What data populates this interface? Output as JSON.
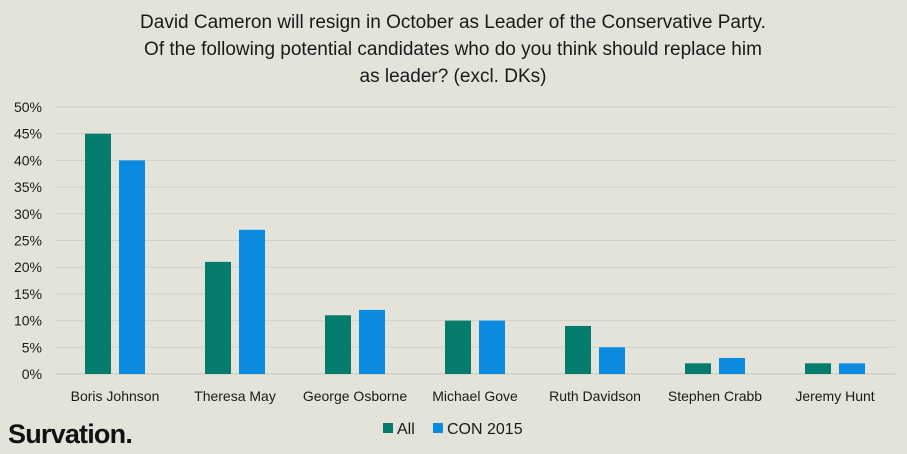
{
  "chart_data": {
    "type": "bar",
    "title_lines": [
      "David Cameron will resign in October as Leader of the Conservative Party.",
      "Of the following potential candidates who do you think should replace him",
      "as leader? (excl. DKs)"
    ],
    "categories": [
      "Boris Johnson",
      "Theresa May",
      "George Osborne",
      "Michael Gove",
      "Ruth Davidson",
      "Stephen Crabb",
      "Jeremy Hunt"
    ],
    "series": [
      {
        "name": "All",
        "color": "#047b6c",
        "values": [
          45,
          21,
          11,
          10,
          9,
          2,
          2
        ]
      },
      {
        "name": "CON 2015",
        "color": "#0b8be0",
        "values": [
          40,
          27,
          12,
          10,
          5,
          3,
          2
        ]
      }
    ],
    "y_ticks": [
      "0%",
      "5%",
      "10%",
      "15%",
      "20%",
      "25%",
      "30%",
      "35%",
      "40%",
      "45%",
      "50%"
    ],
    "ylim": [
      0,
      50
    ],
    "grid": true,
    "legend_position": "bottom"
  },
  "brand": {
    "logo_text": "Survation."
  }
}
